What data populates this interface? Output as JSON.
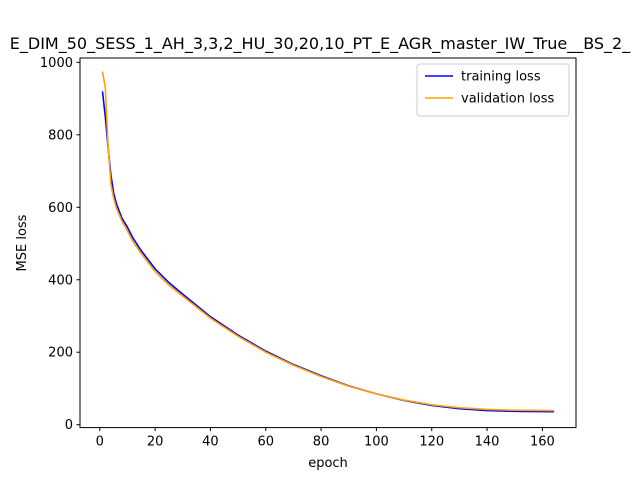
{
  "chart_data": {
    "type": "line",
    "title": "E_DIM_50_SESS_1_AH_3,3,2_HU_30,20,10_PT_E_AGR_master_IW_True__BS_2_",
    "xlabel": "epoch",
    "ylabel": "MSE loss",
    "xlim": [
      -7.15,
      172.15
    ],
    "ylim": [
      -8,
      1012
    ],
    "xticks": [
      0,
      20,
      40,
      60,
      80,
      100,
      120,
      140,
      160
    ],
    "yticks": [
      0,
      200,
      400,
      600,
      800,
      1000
    ],
    "grid": false,
    "legend_position": "top-right",
    "series": [
      {
        "name": "training loss",
        "color": "#0000ff",
        "x": [
          1,
          2,
          3,
          4,
          5,
          6,
          8,
          10,
          12,
          15,
          20,
          25,
          30,
          40,
          50,
          60,
          70,
          80,
          90,
          100,
          110,
          120,
          130,
          140,
          150,
          164
        ],
        "y": [
          918,
          850,
          765,
          690,
          640,
          610,
          570,
          545,
          515,
          480,
          430,
          392,
          360,
          298,
          247,
          203,
          166,
          135,
          107,
          85,
          67,
          53,
          44,
          39,
          37,
          36
        ]
      },
      {
        "name": "validation loss",
        "color": "#ffa500",
        "x": [
          1,
          2,
          3,
          4,
          5,
          6,
          8,
          10,
          12,
          15,
          20,
          25,
          30,
          40,
          50,
          60,
          70,
          80,
          90,
          100,
          110,
          120,
          130,
          140,
          150,
          164
        ],
        "y": [
          973,
          930,
          770,
          665,
          625,
          598,
          562,
          535,
          505,
          472,
          422,
          385,
          355,
          294,
          244,
          200,
          164,
          133,
          106,
          85,
          68,
          55,
          47,
          42,
          40,
          39
        ]
      }
    ]
  }
}
